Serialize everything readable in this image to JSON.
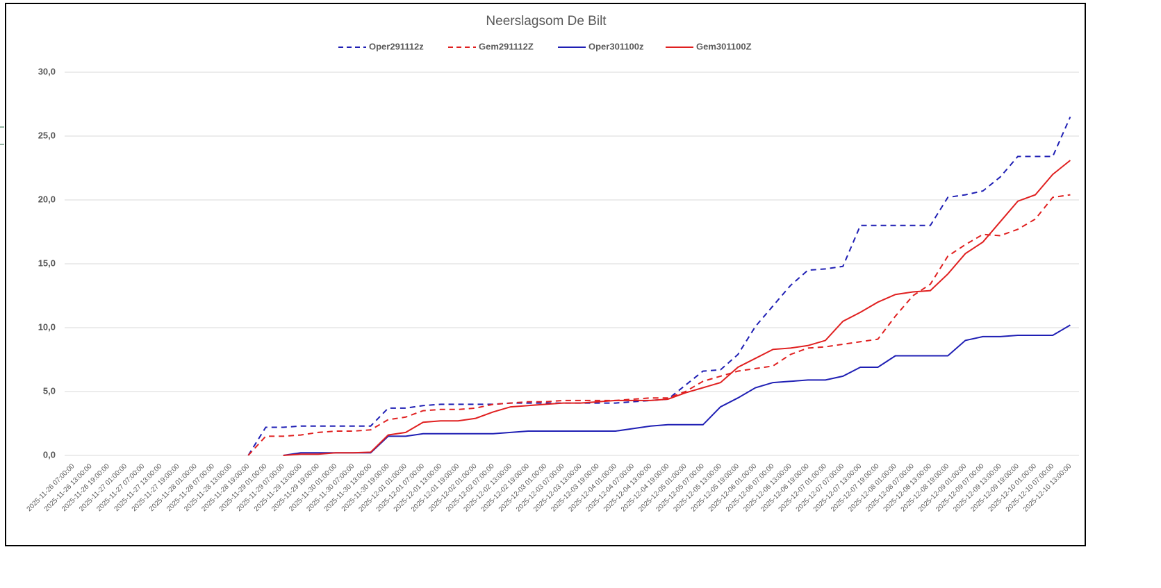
{
  "chart_data": {
    "type": "line",
    "title": "Neerslagsom De Bilt",
    "categories": [
      "2025-11-26 07:00:00",
      "2025-11-26 13:00:00",
      "2025-11-26 19:00:00",
      "2025-11-27 01:00:00",
      "2025-11-27 07:00:00",
      "2025-11-27 13:00:00",
      "2025-11-27 19:00:00",
      "2025-11-28 01:00:00",
      "2025-11-28 07:00:00",
      "2025-11-28 13:00:00",
      "2025-11-28 19:00:00",
      "2025-11-29 01:00:00",
      "2025-11-29 07:00:00",
      "2025-11-29 13:00:00",
      "2025-11-29 19:00:00",
      "2025-11-30 01:00:00",
      "2025-11-30 07:00:00",
      "2025-11-30 13:00:00",
      "2025-11-30 19:00:00",
      "2025-12-01 01:00:00",
      "2025-12-01 07:00:00",
      "2025-12-01 13:00:00",
      "2025-12-01 19:00:00",
      "2025-12-02 01:00:00",
      "2025-12-02 07:00:00",
      "2025-12-02 13:00:00",
      "2025-12-02 19:00:00",
      "2025-12-03 01:00:00",
      "2025-12-03 07:00:00",
      "2025-12-03 13:00:00",
      "2025-12-03 19:00:00",
      "2025-12-04 01:00:00",
      "2025-12-04 07:00:00",
      "2025-12-04 13:00:00",
      "2025-12-04 19:00:00",
      "2025-12-05 01:00:00",
      "2025-12-05 07:00:00",
      "2025-12-05 13:00:00",
      "2025-12-05 19:00:00",
      "2025-12-06 01:00:00",
      "2025-12-06 07:00:00",
      "2025-12-06 13:00:00",
      "2025-12-06 19:00:00",
      "2025-12-07 01:00:00",
      "2025-12-07 07:00:00",
      "2025-12-07 13:00:00",
      "2025-12-07 19:00:00",
      "2025-12-08 01:00:00",
      "2025-12-08 07:00:00",
      "2025-12-08 13:00:00",
      "2025-12-08 19:00:00",
      "2025-12-09 01:00:00",
      "2025-12-09 07:00:00",
      "2025-12-09 13:00:00",
      "2025-12-09 19:00:00",
      "2025-12-10 01:00:00",
      "2025-12-10 07:00:00",
      "2025-12-10 13:00:00"
    ],
    "series": [
      {
        "name": "Oper291112z",
        "color": "#1f1fb4",
        "dashed": true,
        "values": [
          null,
          null,
          null,
          null,
          null,
          null,
          null,
          null,
          null,
          null,
          0,
          2.2,
          2.2,
          2.3,
          2.3,
          2.3,
          2.3,
          2.3,
          3.7,
          3.7,
          3.9,
          4.0,
          4.0,
          4.0,
          4.0,
          4.1,
          4.1,
          4.1,
          4.1,
          4.1,
          4.1,
          4.1,
          4.2,
          4.3,
          4.4,
          5.5,
          6.6,
          6.7,
          7.9,
          10.1,
          11.7,
          13.3,
          14.5,
          14.6,
          14.8,
          18.0,
          18.0,
          18.0,
          18.0,
          18.0,
          20.2,
          20.4,
          20.7,
          21.8,
          23.4,
          23.4,
          23.4,
          26.5
        ]
      },
      {
        "name": "Gem291112Z",
        "color": "#e02020",
        "dashed": true,
        "values": [
          null,
          null,
          null,
          null,
          null,
          null,
          null,
          null,
          null,
          null,
          0,
          1.5,
          1.5,
          1.6,
          1.8,
          1.9,
          1.9,
          2.0,
          2.8,
          3.0,
          3.5,
          3.6,
          3.6,
          3.7,
          4.0,
          4.1,
          4.2,
          4.2,
          4.3,
          4.3,
          4.3,
          4.3,
          4.4,
          4.5,
          4.5,
          5.0,
          5.8,
          6.2,
          6.6,
          6.8,
          7.0,
          7.9,
          8.4,
          8.5,
          8.7,
          8.9,
          9.1,
          10.9,
          12.5,
          13.4,
          15.6,
          16.5,
          17.3,
          17.2,
          17.7,
          18.5,
          20.2,
          20.4
        ]
      },
      {
        "name": "Oper301100z",
        "color": "#1f1fb4",
        "dashed": false,
        "values": [
          null,
          null,
          null,
          null,
          null,
          null,
          null,
          null,
          null,
          null,
          null,
          null,
          0,
          0.2,
          0.2,
          0.2,
          0.2,
          0.2,
          1.5,
          1.5,
          1.7,
          1.7,
          1.7,
          1.7,
          1.7,
          1.8,
          1.9,
          1.9,
          1.9,
          1.9,
          1.9,
          1.9,
          2.1,
          2.3,
          2.4,
          2.4,
          2.4,
          3.8,
          4.5,
          5.3,
          5.7,
          5.8,
          5.9,
          5.9,
          6.2,
          6.9,
          6.9,
          7.8,
          7.8,
          7.8,
          7.8,
          9.0,
          9.3,
          9.3,
          9.4,
          9.4,
          9.4,
          10.2
        ]
      },
      {
        "name": "Gem301100Z",
        "color": "#e02020",
        "dashed": false,
        "values": [
          null,
          null,
          null,
          null,
          null,
          null,
          null,
          null,
          null,
          null,
          null,
          null,
          0,
          0.1,
          0.1,
          0.2,
          0.2,
          0.25,
          1.6,
          1.8,
          2.6,
          2.7,
          2.7,
          2.9,
          3.4,
          3.8,
          3.9,
          4.0,
          4.1,
          4.1,
          4.2,
          4.3,
          4.3,
          4.3,
          4.4,
          4.9,
          5.3,
          5.7,
          6.9,
          7.6,
          8.3,
          8.4,
          8.6,
          9.0,
          10.5,
          11.2,
          12.0,
          12.6,
          12.8,
          12.9,
          14.2,
          15.8,
          16.7,
          18.3,
          19.9,
          20.4,
          22.0,
          23.1
        ]
      }
    ],
    "ylim": [
      0,
      30
    ],
    "yticks": [
      {
        "value": 0,
        "label": "0,0"
      },
      {
        "value": 5,
        "label": "5,0"
      },
      {
        "value": 10,
        "label": "10,0"
      },
      {
        "value": 15,
        "label": "15,0"
      },
      {
        "value": 20,
        "label": "20,0"
      },
      {
        "value": 25,
        "label": "25,0"
      },
      {
        "value": 30,
        "label": "30,0"
      }
    ],
    "grid": true,
    "legend": "top"
  }
}
